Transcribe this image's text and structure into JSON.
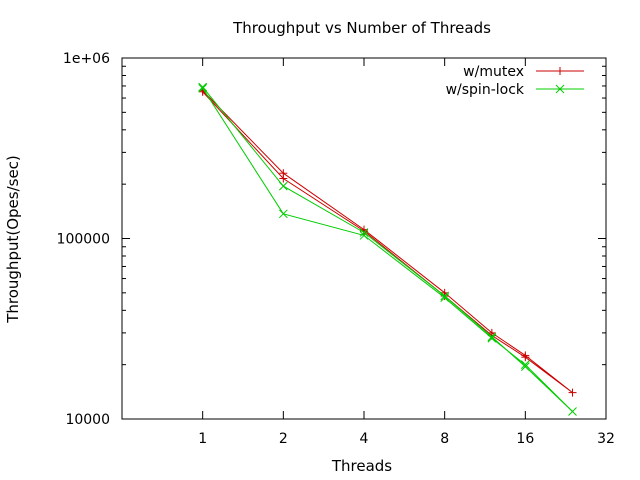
{
  "chart_data": {
    "type": "line",
    "title": "Throughput vs Number of Threads",
    "xlabel": "Threads",
    "ylabel": "Throughput(Opes/sec)",
    "x_scale": "log2",
    "y_scale": "log10",
    "xlim": [
      0.5,
      32
    ],
    "ylim": [
      10000,
      1000000
    ],
    "x_ticks": [
      1,
      2,
      4,
      8,
      16,
      32
    ],
    "x_tick_labels": [
      "1",
      "2",
      "4",
      "8",
      "16",
      "32"
    ],
    "y_ticks": [
      10000,
      100000,
      1000000
    ],
    "y_tick_labels": [
      "10000",
      "100000",
      "1e+06"
    ],
    "legend_position": "top-right",
    "grid": false,
    "series": [
      {
        "name": "w/mutex",
        "color": "#cc0000",
        "marker": "plus",
        "x": [
          1,
          2,
          4,
          8,
          12,
          16,
          24,
          16,
          12,
          8,
          4,
          2,
          1
        ],
        "y": [
          660000,
          230000,
          112000,
          50000,
          30000,
          22500,
          14000,
          22000,
          29000,
          48000,
          110000,
          215000,
          650000
        ]
      },
      {
        "name": "w/spin-lock",
        "color": "#00cc00",
        "marker": "cross",
        "x": [
          1,
          2,
          4,
          8,
          12,
          16,
          24,
          16,
          12,
          8,
          4,
          2,
          1
        ],
        "y": [
          690000,
          195000,
          108000,
          48000,
          28500,
          19500,
          11000,
          20000,
          28000,
          47000,
          104000,
          137000,
          680000
        ]
      }
    ]
  }
}
